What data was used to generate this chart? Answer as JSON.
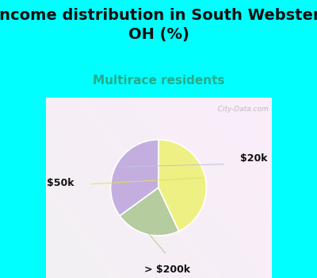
{
  "title": "Income distribution in South Webster,\nOH (%)",
  "subtitle": "Multirace residents",
  "slices": [
    {
      "label": "$20k",
      "value": 35,
      "color": "#c4aee0"
    },
    {
      "label": "> $200k",
      "value": 22,
      "color": "#b5cc9e"
    },
    {
      "label": "$50k",
      "value": 43,
      "color": "#eef083"
    }
  ],
  "title_fontsize": 14,
  "subtitle_fontsize": 11,
  "subtitle_color": "#2aaa88",
  "title_color": "#111111",
  "bg_top_color": "#00ffff",
  "watermark": "  City-Data.com",
  "startangle": 90
}
